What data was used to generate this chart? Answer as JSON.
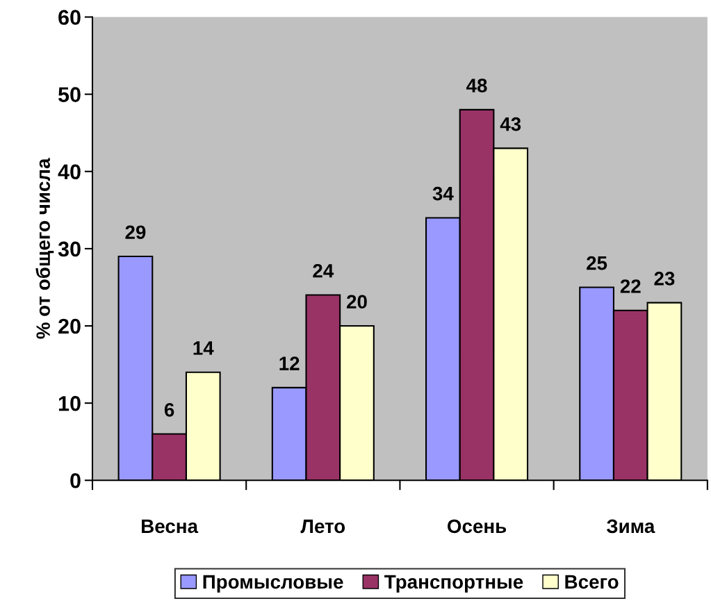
{
  "chart_data": {
    "type": "bar",
    "ylabel": "% от общего числа",
    "categories": [
      "Весна",
      "Лето",
      "Осень",
      "Зима"
    ],
    "series": [
      {
        "name": "Промысловые",
        "color": "#9999ff",
        "values": [
          29,
          12,
          34,
          25
        ]
      },
      {
        "name": "Транспортные",
        "color": "#993366",
        "values": [
          6,
          24,
          48,
          22
        ]
      },
      {
        "name": "Всего",
        "color": "#ffffcc",
        "values": [
          14,
          20,
          43,
          23
        ]
      }
    ],
    "ylim": [
      0,
      60
    ],
    "yticks": [
      0,
      10,
      20,
      30,
      40,
      50,
      60
    ],
    "grid": false,
    "legend": "bottom",
    "data_labels": true
  }
}
